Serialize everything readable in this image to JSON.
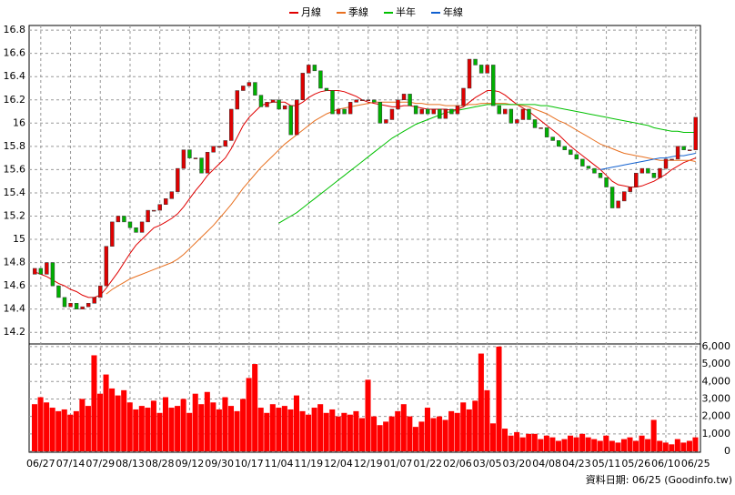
{
  "chart_data": {
    "type": "candlestick",
    "categories": [
      null,
      "06/27",
      null,
      null,
      null,
      null,
      "07/14",
      null,
      null,
      null,
      null,
      "07/29",
      null,
      null,
      null,
      null,
      "08/13",
      null,
      null,
      null,
      null,
      "08/28",
      null,
      null,
      null,
      null,
      "09/12",
      null,
      null,
      null,
      null,
      "09/30",
      null,
      null,
      null,
      null,
      "10/17",
      null,
      null,
      null,
      null,
      "11/04",
      null,
      null,
      null,
      null,
      "11/19",
      null,
      null,
      null,
      null,
      "12/04",
      null,
      null,
      null,
      null,
      "12/19",
      null,
      null,
      null,
      null,
      "01/07",
      null,
      null,
      null,
      null,
      "01/22",
      null,
      null,
      null,
      null,
      "02/06",
      null,
      null,
      null,
      null,
      "03/05",
      null,
      null,
      null,
      null,
      "03/20",
      null,
      null,
      null,
      null,
      "04/08",
      null,
      null,
      null,
      null,
      "04/23",
      null,
      null,
      null,
      null,
      "05/11",
      null,
      null,
      null,
      null,
      "05/26",
      null,
      null,
      null,
      null,
      "06/10",
      null,
      null,
      null,
      null,
      "06/25"
    ],
    "open": [
      14.7,
      14.75,
      14.7,
      14.8,
      14.6,
      14.5,
      14.42,
      14.45,
      14.4,
      14.42,
      14.45,
      14.5,
      14.6,
      14.94,
      15.15,
      15.2,
      15.15,
      15.1,
      15.06,
      15.15,
      15.25,
      15.25,
      15.3,
      15.35,
      15.41,
      15.61,
      15.77,
      15.7,
      15.7,
      15.57,
      15.75,
      15.8,
      15.8,
      15.85,
      16.12,
      16.28,
      16.32,
      16.35,
      16.24,
      16.14,
      16.18,
      16.2,
      16.12,
      16.15,
      15.9,
      16.2,
      16.43,
      16.5,
      16.45,
      16.3,
      16.28,
      16.08,
      16.12,
      16.08,
      16.18,
      16.2,
      16.2,
      16.2,
      16.18,
      16.0,
      16.03,
      16.12,
      16.2,
      16.25,
      16.15,
      16.08,
      16.12,
      16.08,
      16.12,
      16.04,
      16.12,
      16.08,
      16.15,
      16.3,
      16.55,
      16.5,
      16.43,
      16.5,
      16.15,
      16.08,
      16.12,
      16.0,
      16.03,
      16.12,
      16.03,
      15.96,
      15.96,
      15.88,
      15.85,
      15.8,
      15.77,
      15.73,
      15.69,
      15.63,
      15.61,
      15.57,
      15.53,
      15.45,
      15.27,
      15.33,
      15.41,
      15.45,
      15.57,
      15.61,
      15.57,
      15.53,
      15.61,
      15.69,
      15.69,
      15.8,
      15.77,
      15.77
    ],
    "close": [
      14.75,
      14.7,
      14.8,
      14.6,
      14.5,
      14.42,
      14.45,
      14.4,
      14.42,
      14.45,
      14.5,
      14.6,
      14.94,
      15.15,
      15.2,
      15.15,
      15.1,
      15.06,
      15.15,
      15.25,
      15.25,
      15.3,
      15.35,
      15.41,
      15.61,
      15.77,
      15.7,
      15.7,
      15.57,
      15.75,
      15.8,
      15.8,
      15.85,
      16.12,
      16.28,
      16.32,
      16.35,
      16.24,
      16.14,
      16.18,
      16.2,
      16.12,
      16.15,
      15.9,
      16.2,
      16.43,
      16.5,
      16.45,
      16.3,
      16.28,
      16.08,
      16.12,
      16.08,
      16.18,
      16.2,
      16.2,
      16.2,
      16.18,
      16.0,
      16.03,
      16.12,
      16.2,
      16.25,
      16.15,
      16.08,
      16.12,
      16.08,
      16.12,
      16.04,
      16.12,
      16.08,
      16.15,
      16.3,
      16.55,
      16.5,
      16.43,
      16.5,
      16.15,
      16.08,
      16.12,
      16.0,
      16.03,
      16.12,
      16.03,
      15.96,
      15.96,
      15.88,
      15.85,
      15.8,
      15.77,
      15.73,
      15.69,
      15.63,
      15.61,
      15.57,
      15.53,
      15.45,
      15.27,
      15.33,
      15.41,
      15.45,
      15.57,
      15.61,
      15.57,
      15.53,
      15.61,
      15.69,
      15.69,
      15.8,
      15.77,
      15.77,
      16.05
    ],
    "up_color": "#e00000",
    "down_color": "#00b000",
    "series": [
      {
        "name": "月線",
        "color": "#e00000",
        "values": [
          14.72,
          14.7,
          14.68,
          14.65,
          14.62,
          14.6,
          14.57,
          14.55,
          14.52,
          14.5,
          14.5,
          14.52,
          14.58,
          14.65,
          14.72,
          14.8,
          14.88,
          14.95,
          15.0,
          15.05,
          15.1,
          15.12,
          15.15,
          15.18,
          15.22,
          15.28,
          15.35,
          15.42,
          15.48,
          15.55,
          15.6,
          15.65,
          15.7,
          15.78,
          15.88,
          15.98,
          16.05,
          16.1,
          16.15,
          16.17,
          16.18,
          16.18,
          16.18,
          16.15,
          16.15,
          16.18,
          16.22,
          16.25,
          16.27,
          16.28,
          16.28,
          16.28,
          16.27,
          16.25,
          16.23,
          16.2,
          16.18,
          16.17,
          16.16,
          16.15,
          16.14,
          16.14,
          16.15,
          16.15,
          16.14,
          16.13,
          16.12,
          16.12,
          16.12,
          16.12,
          16.11,
          16.12,
          16.14,
          16.18,
          16.22,
          16.25,
          16.28,
          16.28,
          16.27,
          16.24,
          16.2,
          16.16,
          16.13,
          16.1,
          16.06,
          16.02,
          15.98,
          15.94,
          15.9,
          15.85,
          15.8,
          15.76,
          15.72,
          15.68,
          15.64,
          15.6,
          15.55,
          15.5,
          15.47,
          15.46,
          15.45,
          15.45,
          15.46,
          15.48,
          15.5,
          15.53,
          15.56,
          15.6,
          15.63,
          15.66,
          15.68,
          15.7
        ]
      },
      {
        "name": "季線",
        "color": "#e87020",
        "values": [
          null,
          null,
          null,
          null,
          null,
          null,
          null,
          null,
          null,
          null,
          null,
          null,
          14.53,
          14.57,
          14.6,
          14.63,
          14.66,
          14.68,
          14.7,
          14.72,
          14.74,
          14.76,
          14.78,
          14.8,
          14.83,
          14.87,
          14.92,
          14.97,
          15.02,
          15.07,
          15.12,
          15.18,
          15.24,
          15.3,
          15.37,
          15.44,
          15.5,
          15.56,
          15.62,
          15.67,
          15.72,
          15.77,
          15.82,
          15.86,
          15.9,
          15.94,
          15.98,
          16.02,
          16.05,
          16.08,
          16.1,
          16.12,
          16.13,
          16.14,
          16.15,
          16.16,
          16.17,
          16.18,
          16.18,
          16.18,
          16.18,
          16.18,
          16.18,
          16.18,
          16.17,
          16.17,
          16.16,
          16.16,
          16.16,
          16.15,
          16.15,
          16.15,
          16.15,
          16.16,
          16.16,
          16.17,
          16.17,
          16.17,
          16.17,
          16.17,
          16.16,
          16.16,
          16.15,
          16.14,
          16.12,
          16.1,
          16.08,
          16.05,
          16.02,
          16.0,
          15.97,
          15.94,
          15.91,
          15.88,
          15.85,
          15.82,
          15.8,
          15.78,
          15.76,
          15.74,
          15.73,
          15.72,
          15.71,
          15.7,
          15.69,
          15.68,
          15.68,
          15.68,
          15.68,
          15.68,
          15.68,
          15.67
        ]
      },
      {
        "name": "半年",
        "color": "#00c000",
        "values": [
          null,
          null,
          null,
          null,
          null,
          null,
          null,
          null,
          null,
          null,
          null,
          null,
          null,
          null,
          null,
          null,
          null,
          null,
          null,
          null,
          null,
          null,
          null,
          null,
          null,
          null,
          null,
          null,
          null,
          null,
          null,
          null,
          null,
          null,
          null,
          null,
          null,
          null,
          null,
          null,
          null,
          15.14,
          15.17,
          15.2,
          15.23,
          15.27,
          15.31,
          15.35,
          15.39,
          15.43,
          15.47,
          15.51,
          15.55,
          15.59,
          15.63,
          15.67,
          15.71,
          15.75,
          15.79,
          15.83,
          15.87,
          15.9,
          15.93,
          15.96,
          15.99,
          16.01,
          16.03,
          16.05,
          16.07,
          16.09,
          16.1,
          16.11,
          16.12,
          16.13,
          16.14,
          16.15,
          16.16,
          16.16,
          16.16,
          16.16,
          16.16,
          16.16,
          16.16,
          16.16,
          16.16,
          16.15,
          16.15,
          16.14,
          16.13,
          16.12,
          16.11,
          16.1,
          16.09,
          16.08,
          16.07,
          16.06,
          16.05,
          16.04,
          16.03,
          16.02,
          16.01,
          16.0,
          15.99,
          15.98,
          15.96,
          15.95,
          15.94,
          15.93,
          15.93,
          15.92,
          15.92,
          15.92
        ]
      },
      {
        "name": "年線",
        "color": "#1060d0",
        "values": [
          null,
          null,
          null,
          null,
          null,
          null,
          null,
          null,
          null,
          null,
          null,
          null,
          null,
          null,
          null,
          null,
          null,
          null,
          null,
          null,
          null,
          null,
          null,
          null,
          null,
          null,
          null,
          null,
          null,
          null,
          null,
          null,
          null,
          null,
          null,
          null,
          null,
          null,
          null,
          null,
          null,
          null,
          null,
          null,
          null,
          null,
          null,
          null,
          null,
          null,
          null,
          null,
          null,
          null,
          null,
          null,
          null,
          null,
          null,
          null,
          null,
          null,
          null,
          null,
          null,
          null,
          null,
          null,
          null,
          null,
          null,
          null,
          null,
          null,
          null,
          null,
          null,
          null,
          null,
          null,
          null,
          null,
          null,
          null,
          null,
          null,
          null,
          null,
          null,
          null,
          null,
          null,
          null,
          null,
          null,
          15.6,
          15.61,
          15.62,
          15.63,
          15.64,
          15.65,
          15.66,
          15.67,
          15.68,
          15.69,
          15.7,
          15.7,
          15.71,
          15.72,
          15.72,
          15.73,
          15.74
        ]
      }
    ],
    "ylim": [
      14.1,
      16.84
    ],
    "yticks": [
      14.2,
      14.4,
      14.6,
      14.8,
      15,
      15.2,
      15.4,
      15.6,
      15.8,
      16,
      16.2,
      16.4,
      16.6,
      16.8
    ],
    "volume": {
      "color": "#ff0000",
      "values": [
        2700,
        3100,
        2800,
        2500,
        2300,
        2400,
        2100,
        2300,
        3000,
        2600,
        5500,
        3300,
        4400,
        3600,
        3200,
        3500,
        2800,
        2400,
        2600,
        2500,
        2900,
        2200,
        3100,
        2500,
        2600,
        3000,
        2200,
        3300,
        2700,
        3400,
        2800,
        2400,
        3100,
        2600,
        2300,
        3000,
        4200,
        5000,
        2500,
        2200,
        2700,
        2500,
        2600,
        2400,
        3200,
        2300,
        2100,
        2500,
        2700,
        2200,
        2400,
        2000,
        2200,
        2100,
        2300,
        1900,
        4100,
        2000,
        1500,
        1700,
        2000,
        2300,
        2700,
        2000,
        1400,
        1700,
        2500,
        1900,
        2000,
        1800,
        2300,
        2200,
        2800,
        2400,
        2900,
        5600,
        3500,
        1600,
        6000,
        1300,
        900,
        1100,
        800,
        1000,
        1000,
        700,
        900,
        800,
        600,
        700,
        900,
        800,
        1000,
        800,
        700,
        600,
        900,
        600,
        500,
        700,
        800,
        600,
        900,
        700,
        1800,
        600,
        500,
        400,
        700,
        500,
        600,
        800
      ],
      "y2lim": [
        0,
        6150
      ],
      "y2ticks": [
        0,
        {
          "value": 1000,
          "label": "1,000"
        },
        {
          "value": 2000,
          "label": "2,000"
        },
        {
          "value": 3000,
          "label": "3,000"
        },
        {
          "value": 4000,
          "label": "4,000"
        },
        {
          "value": 5000,
          "label": "5,000"
        },
        {
          "value": 6000,
          "label": "6,000"
        }
      ]
    },
    "grid": true,
    "source": "資料日期: 06/25 (Goodinfo.tw)"
  }
}
